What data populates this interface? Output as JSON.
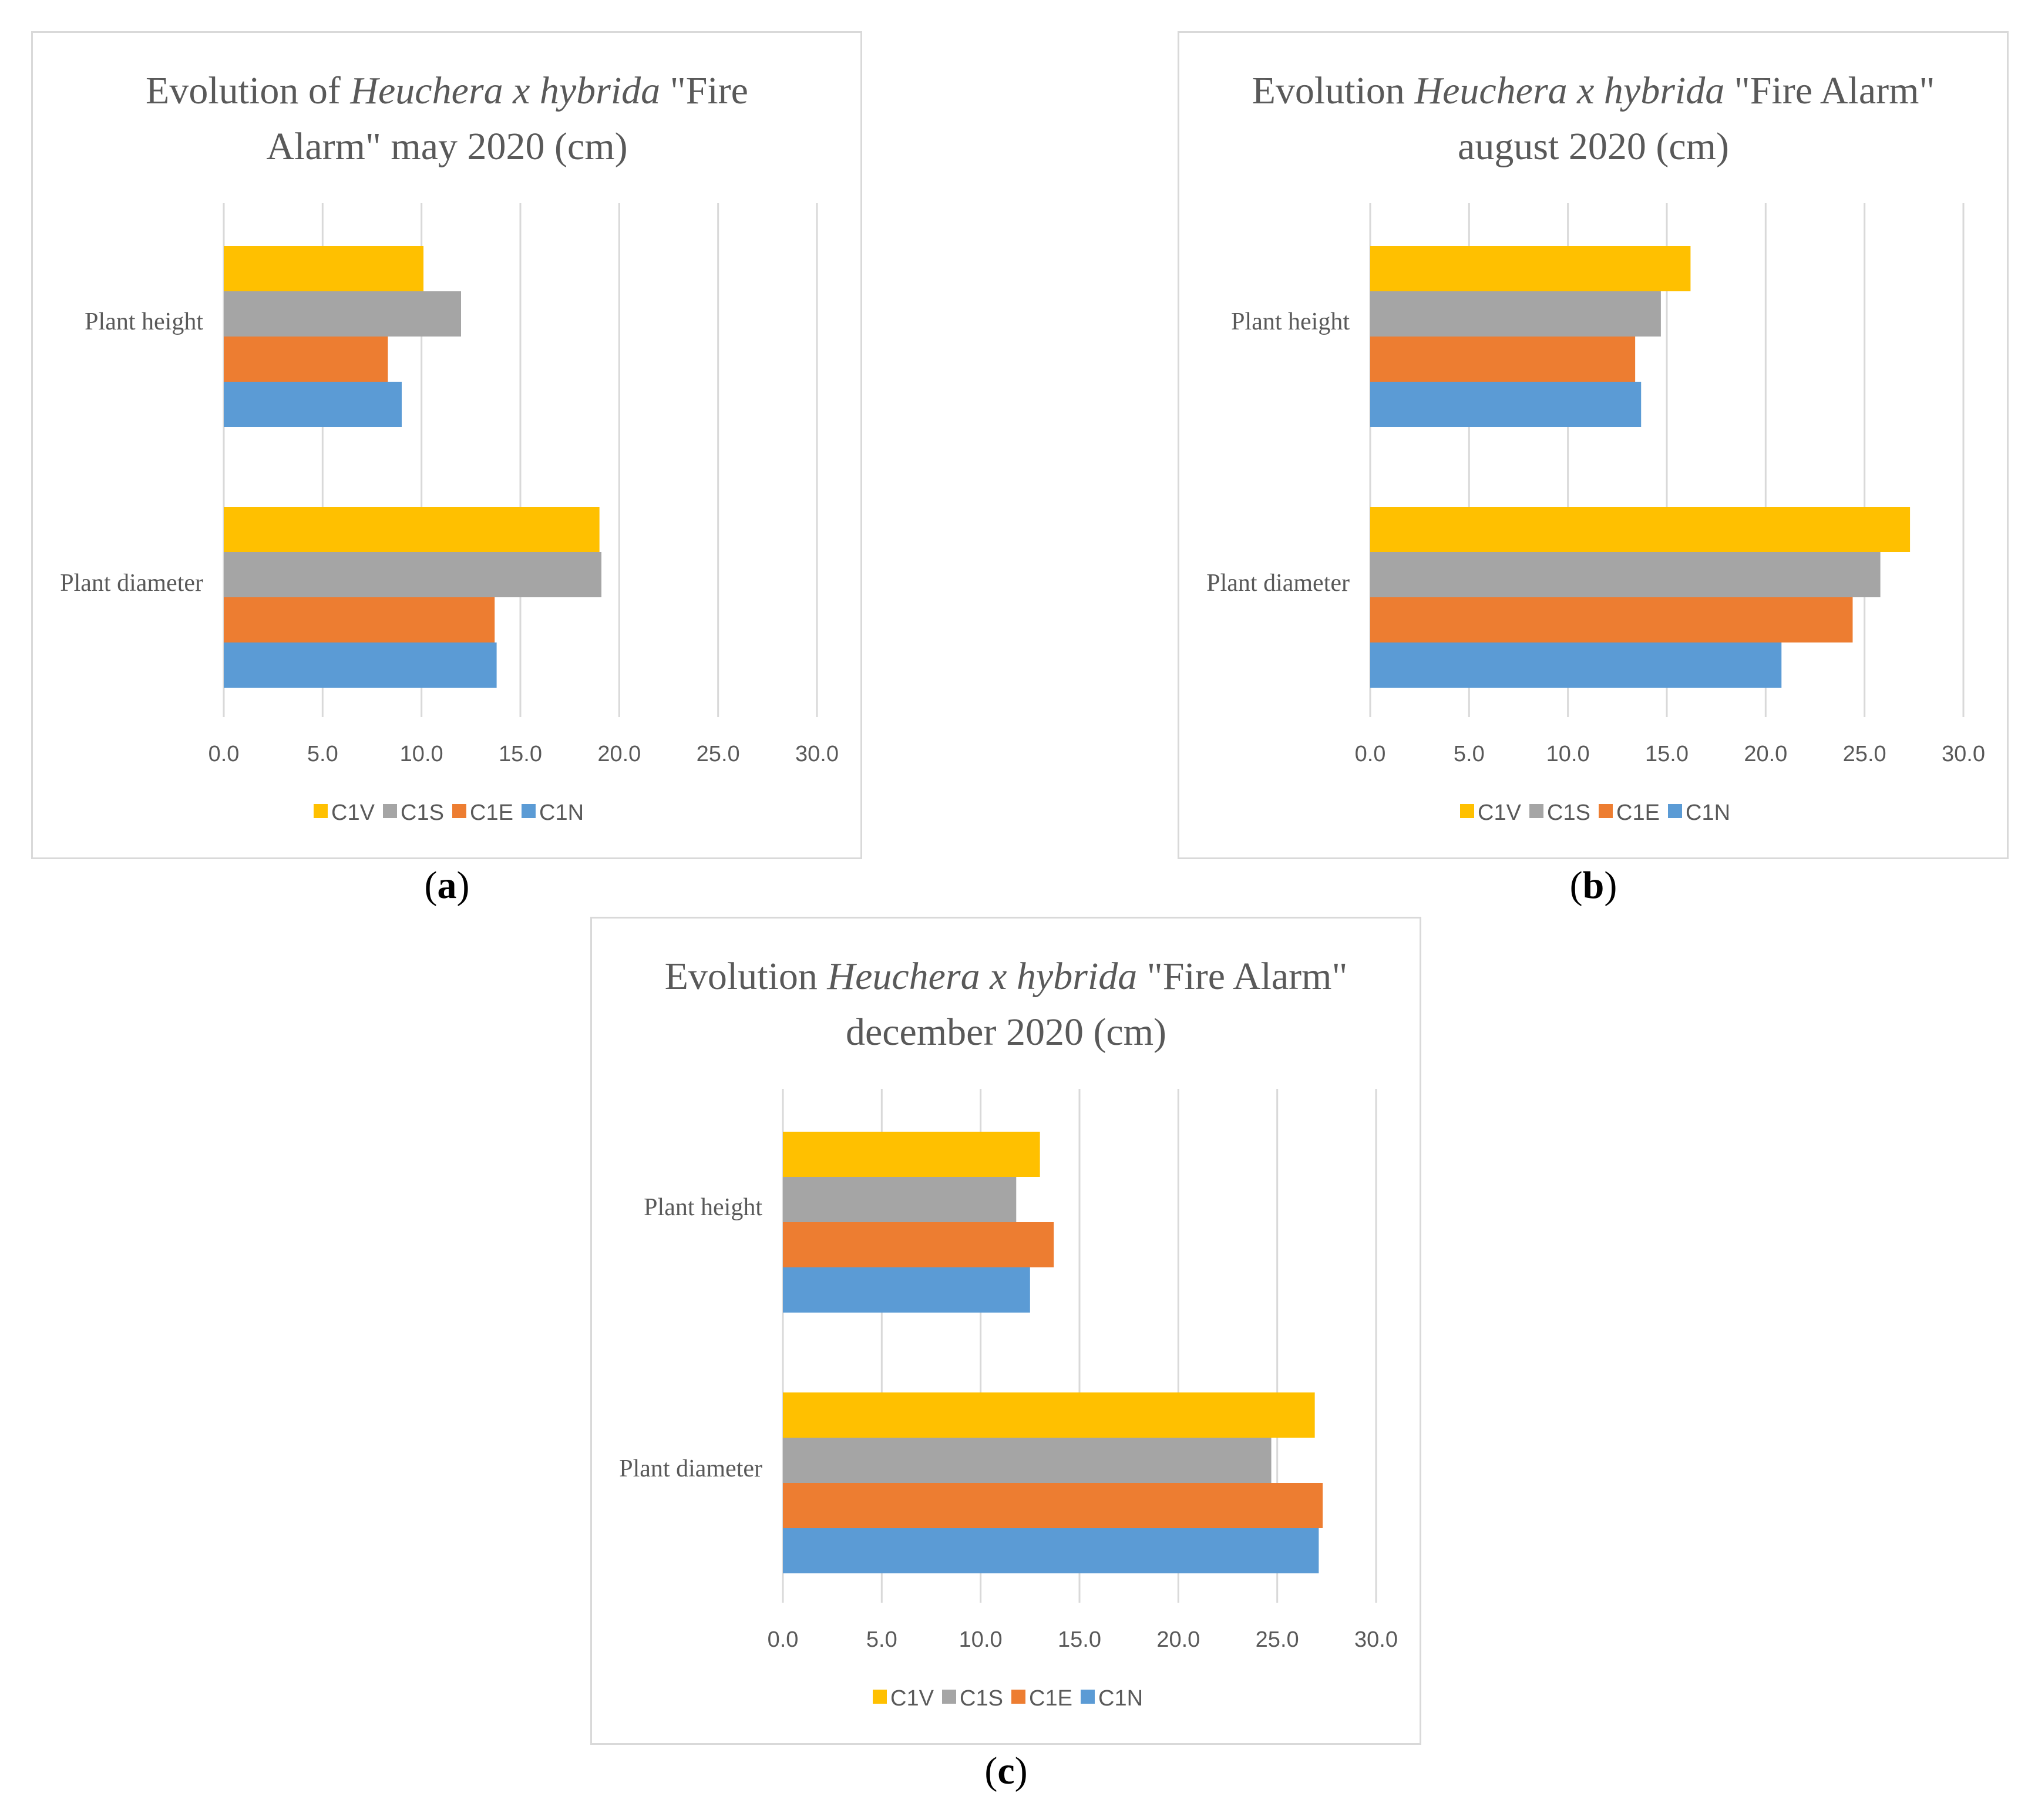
{
  "chart_data": [
    {
      "type": "bar",
      "orientation": "horizontal",
      "title_parts": [
        "Evolution of ",
        "Heuchera x hybrida",
        " \"Fire",
        "Alarm\" may 2020 (cm)"
      ],
      "categories": [
        "Plant height",
        "Plant diameter"
      ],
      "series": [
        {
          "name": "C1V",
          "values": [
            10.1,
            19.0
          ]
        },
        {
          "name": "C1S",
          "values": [
            12.0,
            19.1
          ]
        },
        {
          "name": "C1E",
          "values": [
            8.3,
            13.7
          ]
        },
        {
          "name": "C1N",
          "values": [
            9.0,
            13.8
          ]
        }
      ],
      "xlim": [
        0,
        30
      ],
      "ticks": [
        "0.0",
        "5.0",
        "10.0",
        "15.0",
        "20.0",
        "25.0",
        "30.0"
      ],
      "legend": "bottom",
      "grid": true,
      "caption_letter": "a"
    },
    {
      "type": "bar",
      "orientation": "horizontal",
      "title_parts": [
        "Evolution ",
        "Heuchera x hybrida",
        " \"Fire Alarm\"",
        "august 2020 (cm)"
      ],
      "categories": [
        "Plant height",
        "Plant diameter"
      ],
      "series": [
        {
          "name": "C1V",
          "values": [
            16.2,
            27.3
          ]
        },
        {
          "name": "C1S",
          "values": [
            14.7,
            25.8
          ]
        },
        {
          "name": "C1E",
          "values": [
            13.4,
            24.4
          ]
        },
        {
          "name": "C1N",
          "values": [
            13.7,
            20.8
          ]
        }
      ],
      "xlim": [
        0,
        30
      ],
      "ticks": [
        "0.0",
        "5.0",
        "10.0",
        "15.0",
        "20.0",
        "25.0",
        "30.0"
      ],
      "legend": "bottom",
      "grid": true,
      "caption_letter": "b"
    },
    {
      "type": "bar",
      "orientation": "horizontal",
      "title_parts": [
        "Evolution ",
        "Heuchera x hybrida",
        " \"Fire Alarm\"",
        "december 2020 (cm)"
      ],
      "categories": [
        "Plant height",
        "Plant diameter"
      ],
      "series": [
        {
          "name": "C1V",
          "values": [
            13.0,
            26.9
          ]
        },
        {
          "name": "C1S",
          "values": [
            11.8,
            24.7
          ]
        },
        {
          "name": "C1E",
          "values": [
            13.7,
            27.3
          ]
        },
        {
          "name": "C1N",
          "values": [
            12.5,
            27.1
          ]
        }
      ],
      "xlim": [
        0,
        30
      ],
      "ticks": [
        "0.0",
        "5.0",
        "10.0",
        "15.0",
        "20.0",
        "25.0",
        "30.0"
      ],
      "legend": "bottom",
      "grid": true,
      "caption_letter": "c"
    }
  ],
  "colors": {
    "C1V": "#ffc000",
    "C1S": "#a5a5a5",
    "C1E": "#ed7d31",
    "C1N": "#5b9bd5"
  },
  "captions": [
    "(a)",
    "(b)",
    "(c)"
  ]
}
